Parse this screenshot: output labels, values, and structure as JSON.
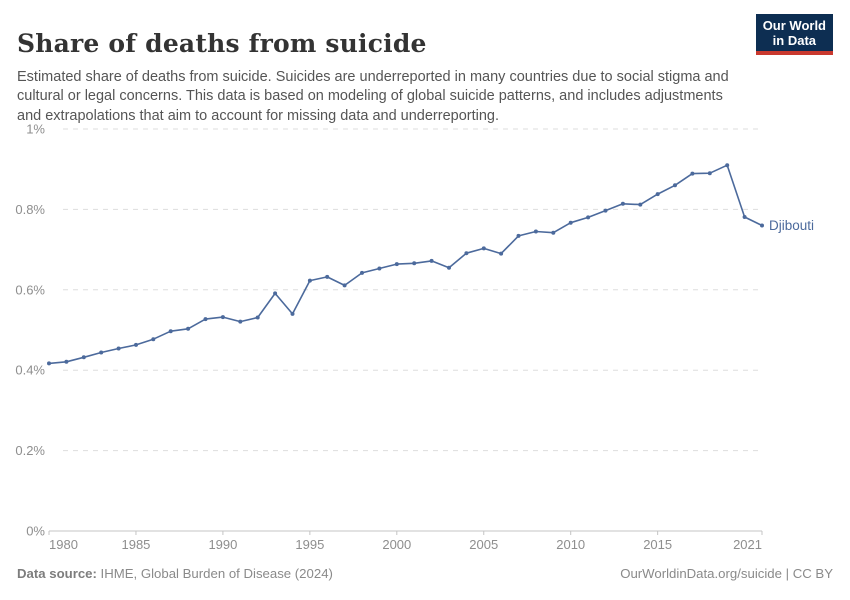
{
  "header": {
    "title": "Share of deaths from suicide",
    "subtitle": "Estimated share of deaths from suicide. Suicides are underreported in many countries due to social stigma and cultural or legal concerns. This data is based on modeling of global suicide patterns, and includes adjustments and extrapolations that aim to account for missing data and underreporting.",
    "logo": {
      "line1": "Our World",
      "line2": "in Data"
    }
  },
  "chart_data": {
    "type": "line",
    "title": "Share of deaths from suicide",
    "xlabel": "",
    "ylabel": "",
    "unit": "%",
    "xlim": [
      1980,
      2021
    ],
    "ylim": [
      0,
      1
    ],
    "grid": "horizontal-dashed",
    "legend_position": "line-end-label",
    "x_ticks": [
      1980,
      1985,
      1990,
      1995,
      2000,
      2005,
      2010,
      2015,
      2021
    ],
    "y_ticks": [
      0,
      0.2,
      0.4,
      0.6,
      0.8,
      1
    ],
    "y_tick_labels": [
      "0%",
      "0.2%",
      "0.4%",
      "0.6%",
      "0.8%",
      "1%"
    ],
    "series": [
      {
        "name": "Djibouti",
        "color": "#4c6a9c",
        "x": [
          1980,
          1981,
          1982,
          1983,
          1984,
          1985,
          1986,
          1987,
          1988,
          1989,
          1990,
          1991,
          1992,
          1993,
          1994,
          1995,
          1996,
          1997,
          1998,
          1999,
          2000,
          2001,
          2002,
          2003,
          2004,
          2005,
          2006,
          2007,
          2008,
          2009,
          2010,
          2011,
          2012,
          2013,
          2014,
          2015,
          2016,
          2017,
          2018,
          2019,
          2020,
          2021
        ],
        "values": [
          0.417,
          0.421,
          0.432,
          0.444,
          0.454,
          0.463,
          0.477,
          0.497,
          0.503,
          0.527,
          0.532,
          0.521,
          0.531,
          0.591,
          0.54,
          0.623,
          0.632,
          0.611,
          0.642,
          0.653,
          0.664,
          0.666,
          0.672,
          0.655,
          0.691,
          0.703,
          0.69,
          0.734,
          0.745,
          0.742,
          0.767,
          0.78,
          0.797,
          0.814,
          0.812,
          0.838,
          0.86,
          0.889,
          0.89,
          0.91,
          0.781,
          0.76
        ]
      }
    ]
  },
  "footer": {
    "source_label": "Data source:",
    "source_text": " IHME, Global Burden of Disease (2024)",
    "credit": "OurWorldinData.org/suicide | CC BY"
  },
  "colors": {
    "accent_line": "#4c6a9c",
    "logo_bg": "#0d2e52",
    "logo_bar": "#c9392e",
    "grid": "#dddddd",
    "axis": "#c4c4c4",
    "tick_label": "#8e8e8e"
  }
}
